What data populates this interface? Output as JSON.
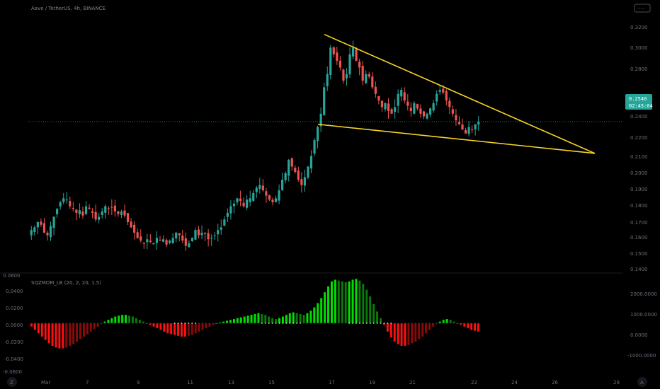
{
  "header": {
    "symbol_title": "Aave / TetherUS, 4h, BINANCE",
    "toggle_label": "·····"
  },
  "price_axis": {
    "ticks": [
      "0.3200",
      "0.3000",
      "0.2800",
      "0.2400",
      "0.2200",
      "0.2100",
      "0.2000",
      "0.1900",
      "0.1800",
      "0.1700",
      "0.1600",
      "0.1500",
      "0.1400"
    ],
    "last_price": "0.2540",
    "countdown": "02:45:04",
    "badge_color": "#26a69a"
  },
  "indicator": {
    "title": "SQZMOM_LB (20, 2, 20, 1.5)",
    "left_ticks": [
      "0.0400",
      "0.0200",
      "0.0000",
      "-0.0200",
      "-0.0400"
    ],
    "right_ticks": [
      "2000.0000",
      "1000.0000",
      "0.0000",
      "-1000.0000"
    ],
    "top_value": "0.0600",
    "bottom_value": "-0.0600"
  },
  "time_axis": {
    "labels": [
      "Mar",
      "7",
      "9",
      "11",
      "13",
      "15",
      "17",
      "19",
      "21",
      "22",
      "24",
      "26",
      "29"
    ]
  },
  "controls": {
    "left_icon": "zoom-icon",
    "right_icon": "auto-scale-icon",
    "left_label": "Z",
    "right_label": "A"
  },
  "colors": {
    "up": "#26a69a",
    "down": "#ef5350",
    "pattern": "#f6d327",
    "mom_pos_strong": "#00e000",
    "mom_pos_weak": "#0a7a0a",
    "mom_neg_strong": "#ff1010",
    "mom_neg_weak": "#8a0a0a"
  },
  "chart_data": {
    "type": "candlestick",
    "title": "Aave / TetherUS, 4h, BINANCE",
    "close_path": [
      0.172,
      0.174,
      0.178,
      0.176,
      0.17,
      0.168,
      0.175,
      0.182,
      0.188,
      0.193,
      0.196,
      0.195,
      0.19,
      0.188,
      0.185,
      0.187,
      0.183,
      0.19,
      0.188,
      0.185,
      0.18,
      0.182,
      0.186,
      0.19,
      0.188,
      0.189,
      0.186,
      0.184,
      0.186,
      0.183,
      0.178,
      0.174,
      0.17,
      0.166,
      0.164,
      0.162,
      0.165,
      0.163,
      0.162,
      0.166,
      0.164,
      0.165,
      0.161,
      0.164,
      0.166,
      0.17,
      0.168,
      0.164,
      0.16,
      0.162,
      0.166,
      0.172,
      0.168,
      0.17,
      0.169,
      0.165,
      0.166,
      0.168,
      0.172,
      0.174,
      0.18,
      0.185,
      0.19,
      0.192,
      0.196,
      0.194,
      0.19,
      0.195,
      0.196,
      0.2,
      0.204,
      0.206,
      0.202,
      0.198,
      0.195,
      0.193,
      0.196,
      0.202,
      0.21,
      0.215,
      0.225,
      0.22,
      0.216,
      0.21,
      0.206,
      0.212,
      0.22,
      0.228,
      0.24,
      0.25,
      0.26,
      0.28,
      0.29,
      0.31,
      0.305,
      0.3,
      0.295,
      0.285,
      0.29,
      0.305,
      0.31,
      0.3,
      0.295,
      0.285,
      0.29,
      0.288,
      0.28,
      0.275,
      0.27,
      0.265,
      0.268,
      0.262,
      0.26,
      0.265,
      0.275,
      0.278,
      0.27,
      0.266,
      0.262,
      0.268,
      0.264,
      0.26,
      0.258,
      0.26,
      0.264,
      0.268,
      0.275,
      0.278,
      0.276,
      0.27,
      0.265,
      0.26,
      0.255,
      0.252,
      0.248,
      0.245,
      0.25,
      0.248,
      0.252,
      0.254
    ],
    "last_price": 0.254,
    "falling_wedge": {
      "upper_line": {
        "from_index": 103,
        "from_price": 0.32,
        "to_index": 225,
        "to_price": 0.23
      },
      "lower_line": {
        "from_index": 103,
        "from_price": 0.252,
        "to_index": 225,
        "to_price": 0.23
      }
    },
    "indicator": {
      "name": "SQZMOM_LB (20, 2, 20, 1.5)",
      "values": [
        -0.004,
        -0.008,
        -0.012,
        -0.016,
        -0.02,
        -0.024,
        -0.027,
        -0.029,
        -0.03,
        -0.03,
        -0.029,
        -0.027,
        -0.025,
        -0.022,
        -0.019,
        -0.016,
        -0.013,
        -0.01,
        -0.007,
        -0.004,
        -0.001,
        0.002,
        0.004,
        0.006,
        0.008,
        0.009,
        0.01,
        0.01,
        0.009,
        0.008,
        0.006,
        0.004,
        0.002,
        0.0,
        -0.002,
        -0.004,
        -0.006,
        -0.008,
        -0.01,
        -0.012,
        -0.013,
        -0.014,
        -0.015,
        -0.016,
        -0.016,
        -0.015,
        -0.014,
        -0.012,
        -0.01,
        -0.008,
        -0.006,
        -0.004,
        -0.002,
        0.0,
        0.001,
        0.002,
        0.003,
        0.004,
        0.005,
        0.006,
        0.007,
        0.008,
        0.009,
        0.01,
        0.011,
        0.012,
        0.011,
        0.01,
        0.008,
        0.006,
        0.005,
        0.006,
        0.008,
        0.01,
        0.012,
        0.013,
        0.012,
        0.011,
        0.01,
        0.012,
        0.015,
        0.019,
        0.024,
        0.03,
        0.037,
        0.044,
        0.05,
        0.052,
        0.051,
        0.05,
        0.049,
        0.05,
        0.052,
        0.053,
        0.051,
        0.047,
        0.04,
        0.032,
        0.023,
        0.014,
        0.006,
        -0.002,
        -0.01,
        -0.017,
        -0.022,
        -0.025,
        -0.027,
        -0.027,
        -0.026,
        -0.024,
        -0.022,
        -0.019,
        -0.016,
        -0.012,
        -0.008,
        -0.004,
        -0.001,
        0.002,
        0.004,
        0.005,
        0.004,
        0.002,
        0.0,
        -0.002,
        -0.004,
        -0.006,
        -0.008,
        -0.009,
        -0.01
      ],
      "y_range": [
        -0.06,
        0.06
      ]
    }
  }
}
